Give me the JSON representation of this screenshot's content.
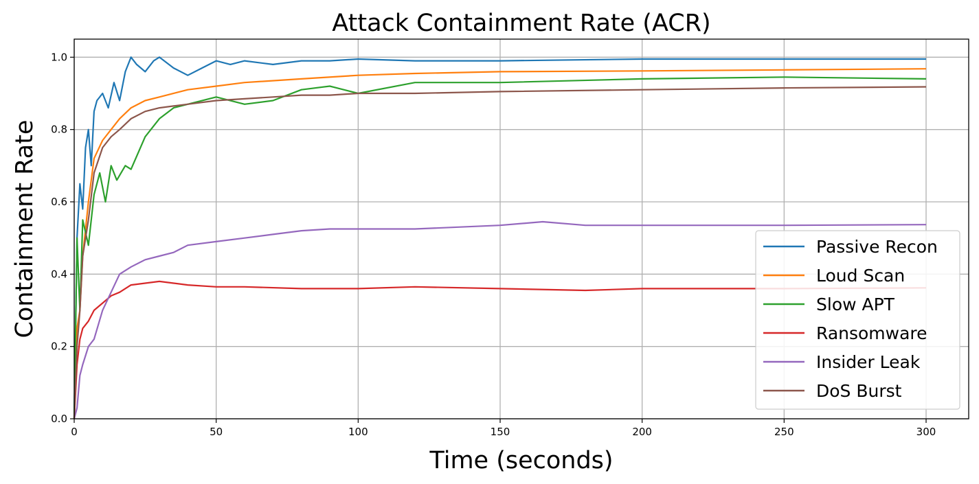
{
  "chart_data": {
    "type": "line",
    "title": "Attack Containment Rate (ACR)",
    "xlabel": "Time (seconds)",
    "ylabel": "Containment Rate",
    "xlim": [
      0,
      315
    ],
    "ylim": [
      0,
      1.05
    ],
    "xticks": [
      0,
      50,
      100,
      150,
      200,
      250,
      300
    ],
    "yticks": [
      0.0,
      0.2,
      0.4,
      0.6,
      0.8,
      1.0
    ],
    "xtick_labels": [
      "0",
      "50",
      "100",
      "150",
      "200",
      "250",
      "300"
    ],
    "ytick_labels": [
      "0.0",
      "0.2",
      "0.4",
      "0.6",
      "0.8",
      "1.0"
    ],
    "grid": true,
    "legend_position": "lower-right",
    "series": [
      {
        "name": "Passive Recon",
        "color": "#1f77b4",
        "x": [
          0,
          1,
          2,
          3,
          4,
          5,
          6,
          7,
          8,
          10,
          12,
          14,
          16,
          18,
          20,
          22,
          25,
          28,
          30,
          35,
          40,
          45,
          50,
          55,
          60,
          70,
          80,
          90,
          100,
          120,
          150,
          200,
          250,
          300
        ],
        "y": [
          0.0,
          0.5,
          0.65,
          0.58,
          0.75,
          0.8,
          0.7,
          0.85,
          0.88,
          0.9,
          0.86,
          0.93,
          0.88,
          0.96,
          1.0,
          0.98,
          0.96,
          0.99,
          1.0,
          0.97,
          0.95,
          0.97,
          0.99,
          0.98,
          0.99,
          0.98,
          0.99,
          0.99,
          0.995,
          0.99,
          0.99,
          0.995,
          0.995,
          0.995
        ]
      },
      {
        "name": "Loud Scan",
        "color": "#ff7f0e",
        "x": [
          0,
          1,
          2,
          3,
          5,
          7,
          10,
          13,
          16,
          20,
          25,
          30,
          40,
          50,
          60,
          80,
          100,
          120,
          150,
          200,
          250,
          300
        ],
        "y": [
          0.0,
          0.25,
          0.3,
          0.45,
          0.6,
          0.72,
          0.77,
          0.8,
          0.83,
          0.86,
          0.88,
          0.89,
          0.91,
          0.92,
          0.93,
          0.94,
          0.95,
          0.955,
          0.96,
          0.962,
          0.965,
          0.968
        ]
      },
      {
        "name": "Slow APT",
        "color": "#2ca02c",
        "x": [
          0,
          1,
          2,
          3,
          5,
          7,
          9,
          11,
          13,
          15,
          18,
          20,
          25,
          30,
          35,
          40,
          50,
          60,
          70,
          80,
          90,
          100,
          120,
          150,
          200,
          250,
          300
        ],
        "y": [
          0.0,
          0.5,
          0.3,
          0.55,
          0.48,
          0.62,
          0.68,
          0.6,
          0.7,
          0.66,
          0.7,
          0.69,
          0.78,
          0.83,
          0.86,
          0.87,
          0.89,
          0.87,
          0.88,
          0.91,
          0.92,
          0.9,
          0.93,
          0.93,
          0.94,
          0.945,
          0.94
        ]
      },
      {
        "name": "Ransomware",
        "color": "#d62728",
        "x": [
          0,
          1,
          2,
          3,
          5,
          7,
          10,
          13,
          16,
          20,
          25,
          30,
          35,
          40,
          50,
          60,
          80,
          100,
          120,
          150,
          180,
          200,
          250,
          300
        ],
        "y": [
          0.0,
          0.15,
          0.22,
          0.25,
          0.27,
          0.3,
          0.32,
          0.34,
          0.35,
          0.37,
          0.375,
          0.38,
          0.375,
          0.37,
          0.365,
          0.365,
          0.36,
          0.36,
          0.365,
          0.36,
          0.355,
          0.36,
          0.36,
          0.362
        ]
      },
      {
        "name": "Insider Leak",
        "color": "#9467bd",
        "x": [
          0,
          1,
          2,
          3,
          5,
          7,
          10,
          13,
          16,
          20,
          25,
          30,
          35,
          40,
          50,
          60,
          70,
          80,
          90,
          100,
          120,
          150,
          165,
          180,
          200,
          250,
          300
        ],
        "y": [
          0.0,
          0.03,
          0.12,
          0.15,
          0.2,
          0.22,
          0.3,
          0.35,
          0.4,
          0.42,
          0.44,
          0.45,
          0.46,
          0.48,
          0.49,
          0.5,
          0.51,
          0.52,
          0.525,
          0.525,
          0.525,
          0.535,
          0.545,
          0.535,
          0.535,
          0.535,
          0.537
        ]
      },
      {
        "name": "DoS Burst",
        "color": "#8c564b",
        "x": [
          0,
          1,
          2,
          3,
          5,
          7,
          10,
          13,
          16,
          20,
          25,
          30,
          35,
          40,
          50,
          60,
          70,
          80,
          90,
          100,
          120,
          150,
          200,
          250,
          300
        ],
        "y": [
          0.0,
          0.2,
          0.3,
          0.45,
          0.55,
          0.68,
          0.75,
          0.78,
          0.8,
          0.83,
          0.85,
          0.86,
          0.865,
          0.87,
          0.88,
          0.885,
          0.89,
          0.895,
          0.895,
          0.9,
          0.9,
          0.905,
          0.91,
          0.915,
          0.918
        ]
      }
    ]
  }
}
